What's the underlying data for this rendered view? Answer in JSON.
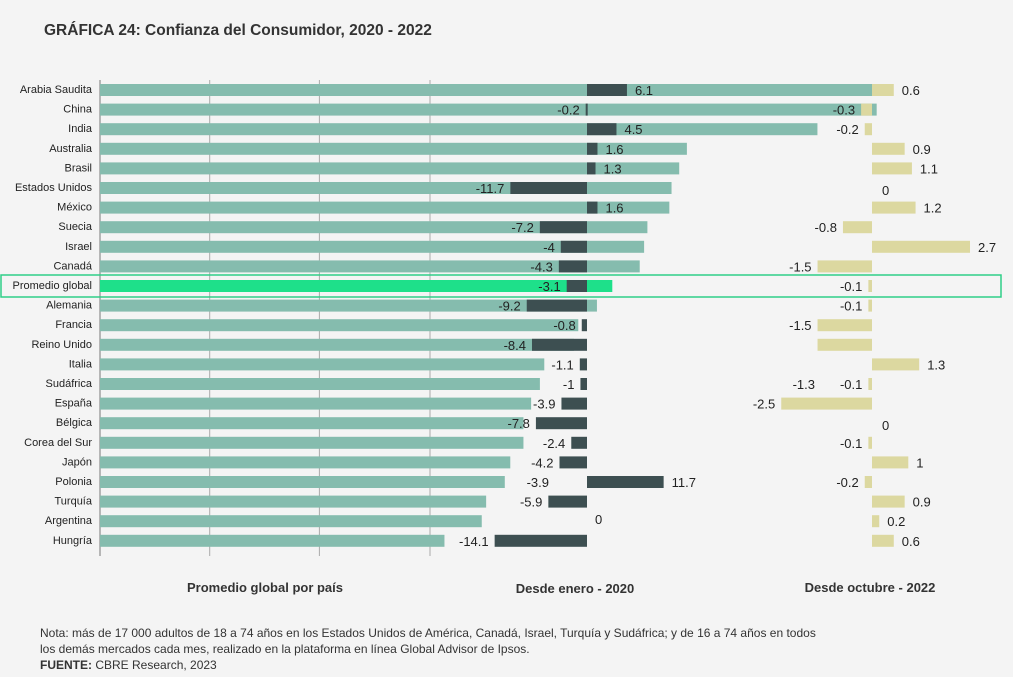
{
  "title": "GRÁFICA 24: Confianza del Consumidor, 2020 - 2022",
  "footer": {
    "note_line1": "Nota: más de 17 000 adultos de 18 a 74 años en los Estados Unidos de América, Canadá, Israel, Turquía y Sudáfrica; y de 16 a 74 años en todos",
    "note_line2": "los demás mercados cada mes, realizado en la plataforma en línea Global Advisor de Ipsos.",
    "source_label": "FUENTE:",
    "source_text": " CBRE Research, 2023"
  },
  "colors": {
    "panel1": "#85bcae",
    "highlight": "#1ee08a",
    "panel2": "#3d4f51",
    "panel3": "#dcd8a0",
    "highlight_box": "#2ecf88",
    "grid": "#aaaaaa"
  },
  "chart_data": [
    {
      "type": "bar",
      "orientation": "horizontal",
      "xlabel": "Promedio global por país",
      "categories": [
        "Arabia Saudita",
        "China",
        "India",
        "Australia",
        "Brasil",
        "Estados Unidos",
        "México",
        "Suecia",
        "Israel",
        "Canadá",
        "Promedio global",
        "Alemania",
        "Francia",
        "Reino Unido",
        "Italia",
        "Sudáfrica",
        "España",
        "Bélgica",
        "Corea del Sur",
        "Japón",
        "Polonia",
        "Turquía",
        "Argentina",
        "Hungría"
      ],
      "values": [
        71.6,
        70.8,
        65.4,
        53.5,
        52.8,
        52.1,
        51.9,
        49.9,
        49.6,
        49.2,
        46.7,
        45.3,
        43.6,
        43.2,
        40.5,
        40.1,
        39.3,
        38.6,
        38.6,
        37.4,
        36.9,
        35.2,
        34.8,
        31.4
      ],
      "highlight": "Promedio global",
      "grid": true
    },
    {
      "type": "bar",
      "orientation": "horizontal",
      "xlabel": "Desde enero - 2020",
      "values": [
        6.1,
        -0.2,
        4.5,
        1.6,
        1.3,
        -11.7,
        1.6,
        -7.2,
        -4,
        -4.3,
        -3.1,
        -9.2,
        -0.8,
        -8.4,
        -1.1,
        -1,
        -3.9,
        -7.8,
        -2.4,
        -4.2,
        11.7,
        -5.9,
        0,
        -14.1
      ],
      "labels": [
        "6.1",
        "-0.2",
        "4.5",
        "1.6",
        "1.3",
        "-11.7",
        "1.6",
        "-7.2",
        "-4",
        "-4.3",
        "-3.1",
        "-9.2",
        "-0.8",
        "-8.4",
        "-1.1",
        "-1",
        "-3.9",
        "-7.8",
        "-2.4",
        "-4.2",
        "11.7",
        "-5.9",
        "0",
        "-14.1"
      ],
      "extra_labels": [
        {
          "row": 20,
          "text": "-3.9"
        }
      ]
    },
    {
      "type": "bar",
      "orientation": "horizontal",
      "xlabel": "Desde octubre - 2022",
      "values": [
        0.6,
        -0.3,
        -0.2,
        0.9,
        1.1,
        0,
        1.2,
        -0.8,
        2.7,
        -1.5,
        -0.1,
        -0.1,
        -1.5,
        -1.5,
        1.3,
        -0.1,
        -2.5,
        0,
        -0.1,
        1,
        -0.2,
        0.9,
        0.2,
        0.6
      ],
      "labels": [
        "0.6",
        "-0.3",
        "-0.2",
        "0.9",
        "1.1",
        "0",
        "1.2",
        "-0.8",
        "2.7",
        "-1.5",
        "-0.1",
        "-0.1",
        "-1.5",
        "",
        "1.3",
        "-0.1",
        "-2.5",
        "0",
        "-0.1",
        "1",
        "-0.2",
        "0.9",
        "0.2",
        "0.6"
      ],
      "extra_labels": [
        {
          "row": 15,
          "text": "-1.3"
        }
      ]
    }
  ]
}
